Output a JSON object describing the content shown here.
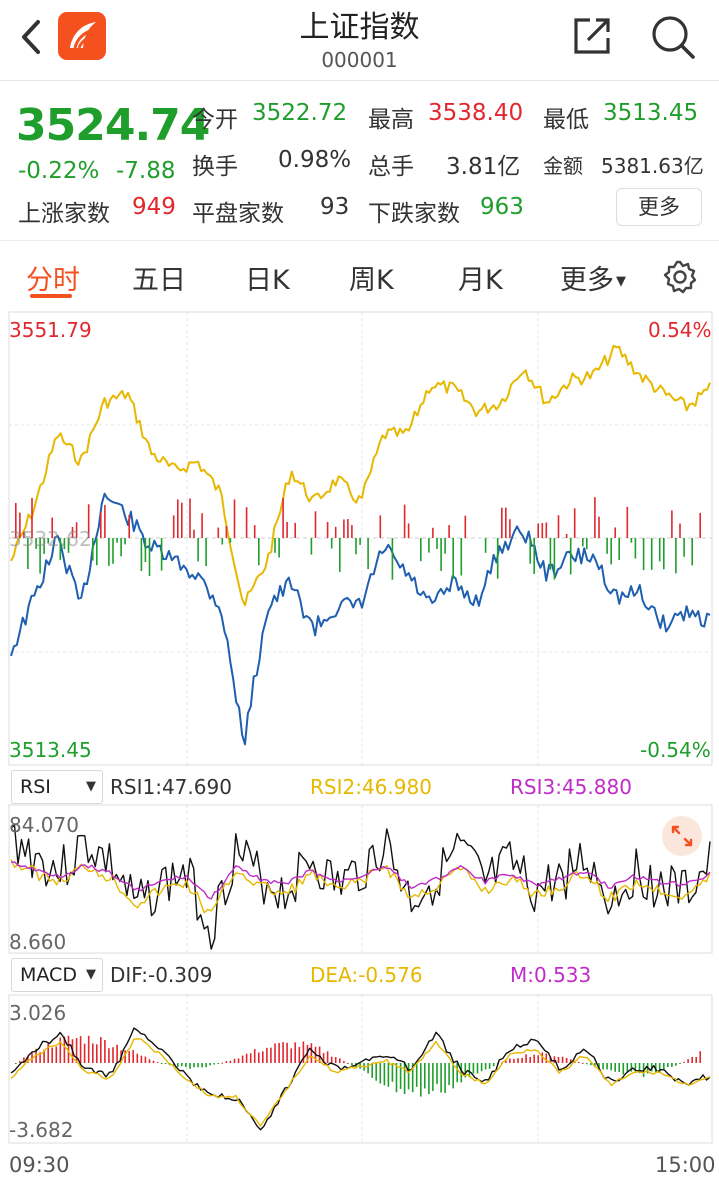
{
  "header": {
    "title": "上证指数",
    "code": "000001"
  },
  "quote": {
    "price": "3524.74",
    "change_pct": "-0.22%",
    "change": "-7.88",
    "open_label": "今开",
    "open": "3522.72",
    "high_label": "最高",
    "high": "3538.40",
    "low_label": "最低",
    "low": "3513.45",
    "turnover_label": "换手",
    "turnover": "0.98%",
    "volume_label": "总手",
    "volume": "3.81亿",
    "amount_label": "金额",
    "amount": "5381.63亿",
    "up_label": "上涨家数",
    "up": "949",
    "flat_label": "平盘家数",
    "flat": "93",
    "down_label": "下跌家数",
    "down": "963",
    "more_label": "更多"
  },
  "tabs": {
    "t0": "分时",
    "t1": "五日",
    "t2": "日K",
    "t3": "周K",
    "t4": "月K",
    "t5": "更多",
    "active": 0
  },
  "main_chart": {
    "y_max": "3551.79",
    "y_min": "3513.45",
    "pct_max": "0.54%",
    "pct_min": "-0.54%",
    "mid_label": "3532.62"
  },
  "rsi": {
    "select": "RSI",
    "rsi1": "RSI1:47.690",
    "rsi2": "RSI2:46.980",
    "rsi3": "RSI3:45.880",
    "y_max": "84.070",
    "y_min": "8.660"
  },
  "macd": {
    "select": "MACD",
    "dif": "DIF:-0.309",
    "dea": "DEA:-0.576",
    "m": "M:0.533",
    "y_max": "3.026",
    "y_min": "-3.682"
  },
  "time_axis": {
    "start": "09:30",
    "end": "15:00"
  },
  "colors": {
    "up": "#e0282e",
    "down": "#1f9e2b",
    "yellow": "#e6b800",
    "blue": "#1f5fb0",
    "magenta": "#c02cc7",
    "accent": "#f3511f"
  },
  "icons": [
    "back-icon",
    "app-logo-icon",
    "share-icon",
    "search-icon",
    "caret-down-icon",
    "gear-icon",
    "expand-icon"
  ]
}
